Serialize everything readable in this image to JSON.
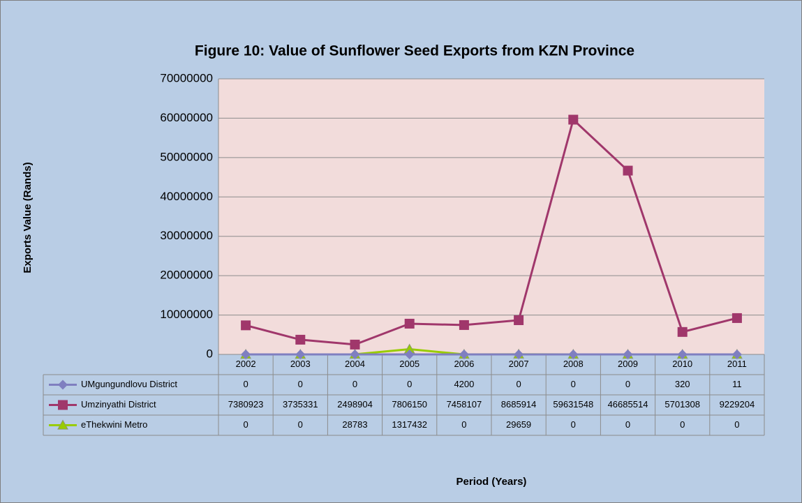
{
  "chart_data": {
    "type": "line",
    "title": "Figure 10: Value of Sunflower Seed Exports from KZN Province",
    "y_label": "Exports Value (Rands)",
    "x_label": "Period (Years)",
    "categories": [
      "2002",
      "2003",
      "2004",
      "2005",
      "2006",
      "2007",
      "2008",
      "2009",
      "2010",
      "2011"
    ],
    "series": [
      {
        "name": "UMgungundlovu District",
        "color": "#7f7fc0",
        "marker": "diamond",
        "values": [
          0,
          0,
          0,
          0,
          4200,
          0,
          0,
          0,
          320,
          11
        ]
      },
      {
        "name": "Umzinyathi District",
        "color": "#a0376b",
        "marker": "square",
        "values": [
          7380923,
          3735331,
          2498904,
          7806150,
          7458107,
          8685914,
          59631548,
          46685514,
          5701308,
          9229204
        ]
      },
      {
        "name": "eThekwini Metro",
        "color": "#99cc00",
        "marker": "triangle",
        "values": [
          0,
          0,
          28783,
          1317432,
          0,
          29659,
          0,
          0,
          0,
          0
        ]
      }
    ],
    "ylim": [
      0,
      70000000
    ],
    "yticks": [
      0,
      10000000,
      20000000,
      30000000,
      40000000,
      50000000,
      60000000,
      70000000
    ],
    "grid": true
  }
}
